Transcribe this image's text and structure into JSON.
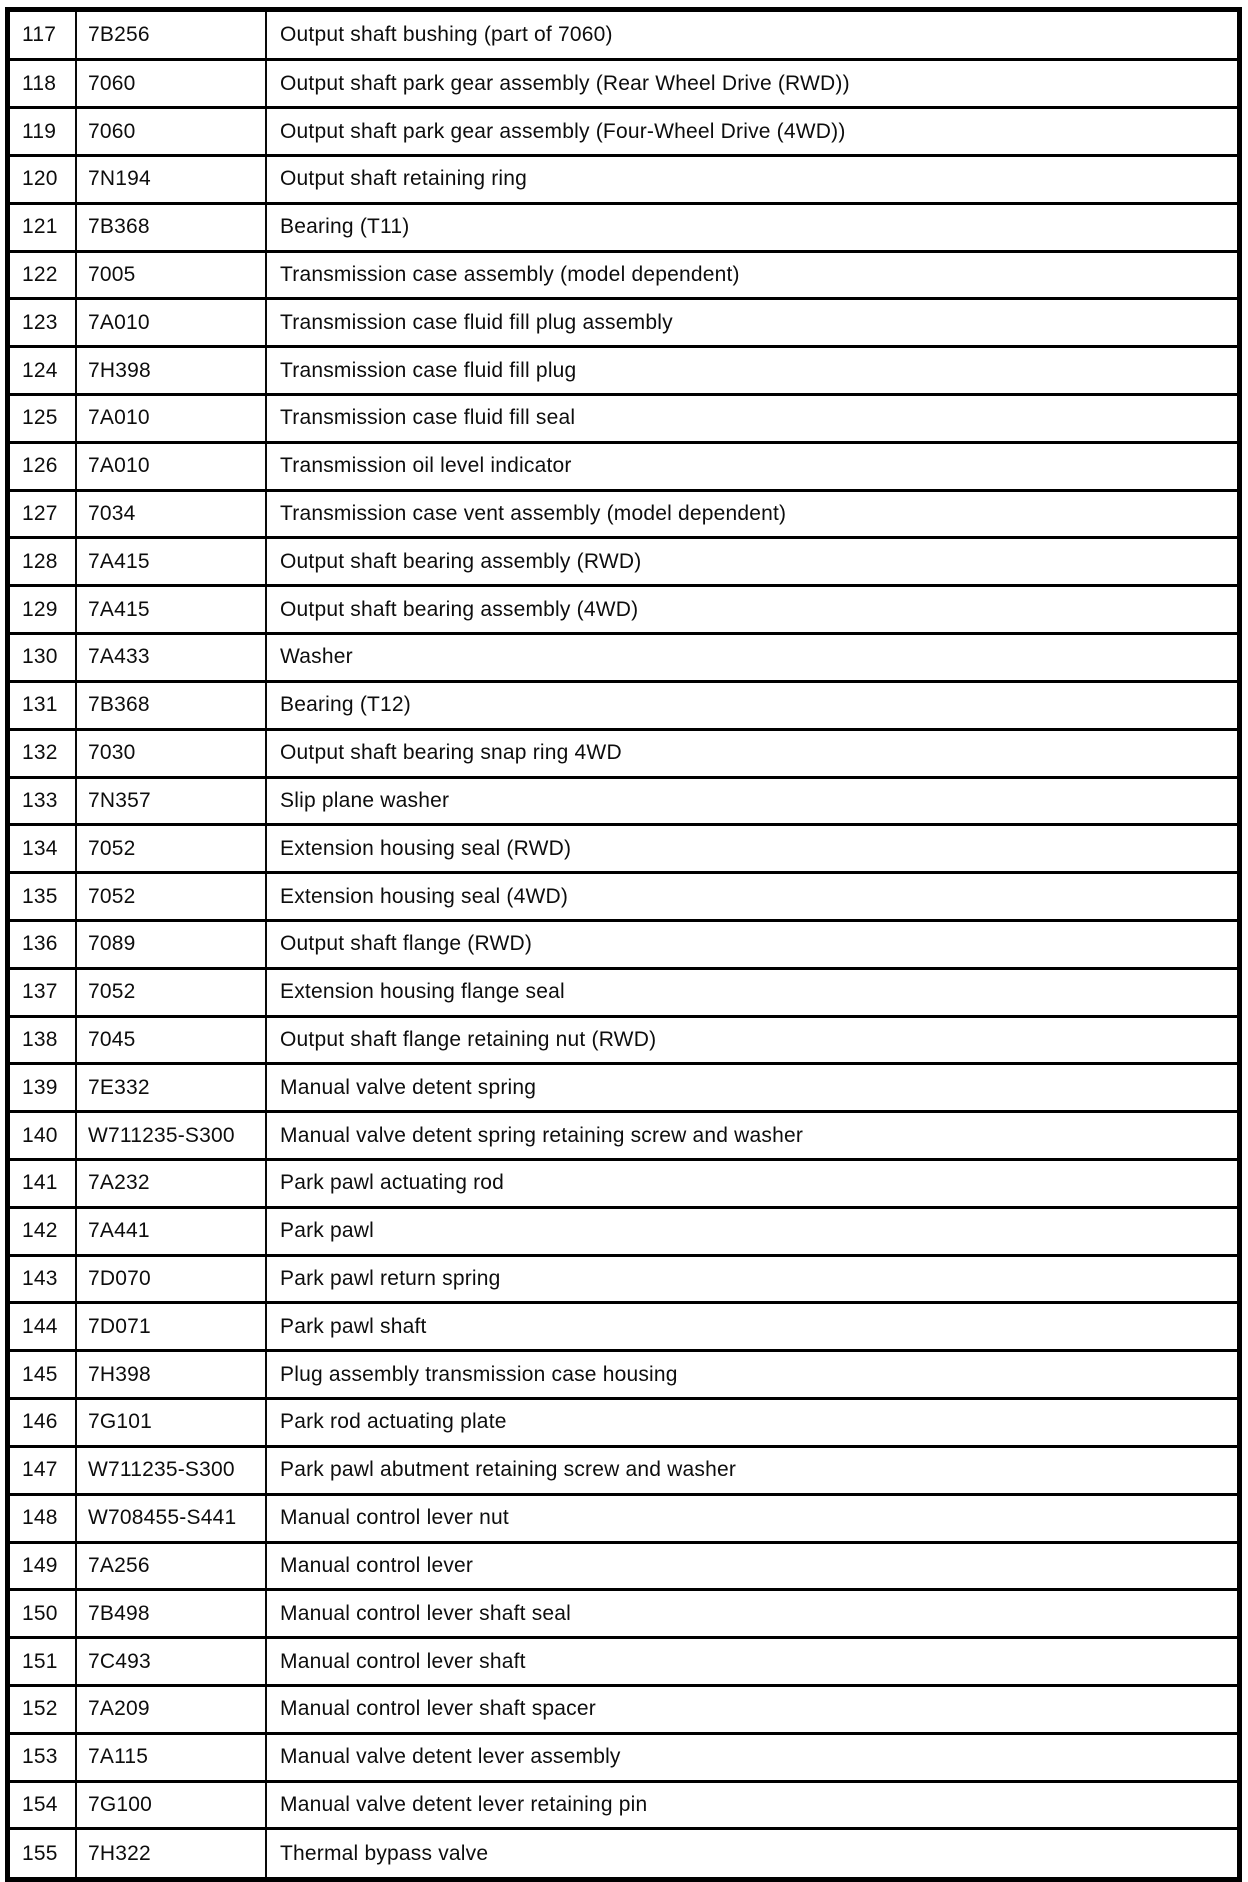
{
  "page": {
    "background_color": "#ffffff",
    "line_color": "#000000",
    "text_color": "#0d0d0d"
  },
  "table": {
    "rows": [
      {
        "item": "117",
        "part": "7B256",
        "description": "Output shaft bushing (part of 7060)"
      },
      {
        "item": "118",
        "part": "7060",
        "description": "Output shaft park gear assembly (Rear Wheel Drive (RWD))"
      },
      {
        "item": "119",
        "part": "7060",
        "description": "Output shaft park gear assembly (Four-Wheel Drive (4WD))"
      },
      {
        "item": "120",
        "part": "7N194",
        "description": "Output shaft retaining ring"
      },
      {
        "item": "121",
        "part": "7B368",
        "description": "Bearing (T11)"
      },
      {
        "item": "122",
        "part": "7005",
        "description": "Transmission case assembly (model dependent)"
      },
      {
        "item": "123",
        "part": "7A010",
        "description": "Transmission case fluid fill plug assembly"
      },
      {
        "item": "124",
        "part": "7H398",
        "description": "Transmission case fluid fill plug"
      },
      {
        "item": "125",
        "part": "7A010",
        "description": "Transmission case fluid fill seal"
      },
      {
        "item": "126",
        "part": "7A010",
        "description": "Transmission oil level indicator"
      },
      {
        "item": "127",
        "part": "7034",
        "description": "Transmission case vent assembly (model dependent)"
      },
      {
        "item": "128",
        "part": "7A415",
        "description": "Output shaft bearing assembly (RWD)"
      },
      {
        "item": "129",
        "part": "7A415",
        "description": "Output shaft bearing assembly (4WD)"
      },
      {
        "item": "130",
        "part": "7A433",
        "description": "Washer"
      },
      {
        "item": "131",
        "part": "7B368",
        "description": "Bearing (T12)"
      },
      {
        "item": "132",
        "part": "7030",
        "description": "Output shaft bearing snap ring 4WD"
      },
      {
        "item": "133",
        "part": "7N357",
        "description": "Slip plane washer"
      },
      {
        "item": "134",
        "part": "7052",
        "description": "Extension housing seal (RWD)"
      },
      {
        "item": "135",
        "part": "7052",
        "description": "Extension housing seal (4WD)"
      },
      {
        "item": "136",
        "part": "7089",
        "description": "Output shaft flange (RWD)"
      },
      {
        "item": "137",
        "part": "7052",
        "description": "Extension housing flange seal"
      },
      {
        "item": "138",
        "part": "7045",
        "description": "Output shaft flange retaining nut (RWD)"
      },
      {
        "item": "139",
        "part": "7E332",
        "description": "Manual valve detent spring"
      },
      {
        "item": "140",
        "part": "W711235-S300",
        "description": "Manual valve detent spring retaining screw and washer"
      },
      {
        "item": "141",
        "part": "7A232",
        "description": "Park pawl actuating rod"
      },
      {
        "item": "142",
        "part": "7A441",
        "description": "Park pawl"
      },
      {
        "item": "143",
        "part": "7D070",
        "description": "Park pawl return spring"
      },
      {
        "item": "144",
        "part": "7D071",
        "description": "Park pawl shaft"
      },
      {
        "item": "145",
        "part": "7H398",
        "description": "Plug assembly transmission case housing"
      },
      {
        "item": "146",
        "part": "7G101",
        "description": "Park rod actuating plate"
      },
      {
        "item": "147",
        "part": "W711235-S300",
        "description": "Park pawl abutment retaining screw and washer"
      },
      {
        "item": "148",
        "part": "W708455-S441",
        "description": "Manual control lever nut"
      },
      {
        "item": "149",
        "part": "7A256",
        "description": "Manual control lever"
      },
      {
        "item": "150",
        "part": "7B498",
        "description": "Manual control lever shaft seal"
      },
      {
        "item": "151",
        "part": "7C493",
        "description": "Manual control lever shaft"
      },
      {
        "item": "152",
        "part": "7A209",
        "description": "Manual control lever shaft spacer"
      },
      {
        "item": "153",
        "part": "7A115",
        "description": "Manual valve detent lever assembly"
      },
      {
        "item": "154",
        "part": "7G100",
        "description": "Manual valve detent lever retaining pin"
      },
      {
        "item": "155",
        "part": "7H322",
        "description": "Thermal bypass valve"
      }
    ]
  }
}
